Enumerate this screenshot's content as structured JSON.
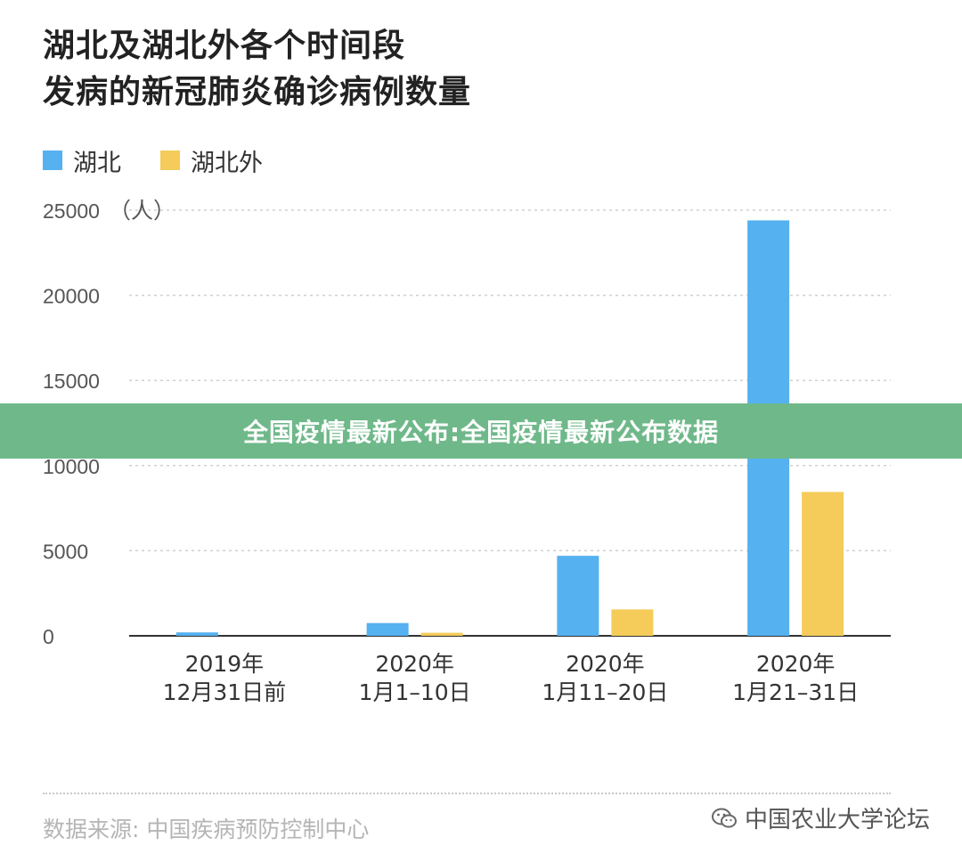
{
  "title_lines": [
    "湖北及湖北外各个时间段",
    "发病的新冠肺炎确诊病例数量"
  ],
  "banner": "全国疫情最新公布:全国疫情最新公布数据",
  "source": "数据来源: 中国疾病预防控制中心",
  "brand": "中国农业大学论坛",
  "icon": "wechat-icon",
  "colors": {
    "hubei": "#55b1f0",
    "outside": "#f5cc5a",
    "banner": "#6fb88a",
    "grid": "#d0d0d0"
  },
  "chart_data": {
    "type": "bar",
    "title": "湖北及湖北外各个时间段发病的新冠肺炎确诊病例数量",
    "ylabel": "（人）",
    "ylim": [
      0,
      25000
    ],
    "yticks": [
      0,
      5000,
      10000,
      15000,
      20000,
      25000
    ],
    "ytick_labels": [
      "0",
      "5000",
      "10000",
      "15000",
      "20000",
      "25000"
    ],
    "categories": [
      [
        "2019年",
        "12月31日前"
      ],
      [
        "2020年",
        "1月1–10日"
      ],
      [
        "2020年",
        "1月11–20日"
      ],
      [
        "2020年",
        "1月21–31日"
      ]
    ],
    "series": [
      {
        "name": "湖北",
        "values": [
          200,
          750,
          4700,
          24400
        ]
      },
      {
        "name": "湖北外",
        "values": [
          0,
          180,
          1550,
          8450
        ]
      }
    ],
    "grid": true,
    "legend": "top-left"
  }
}
